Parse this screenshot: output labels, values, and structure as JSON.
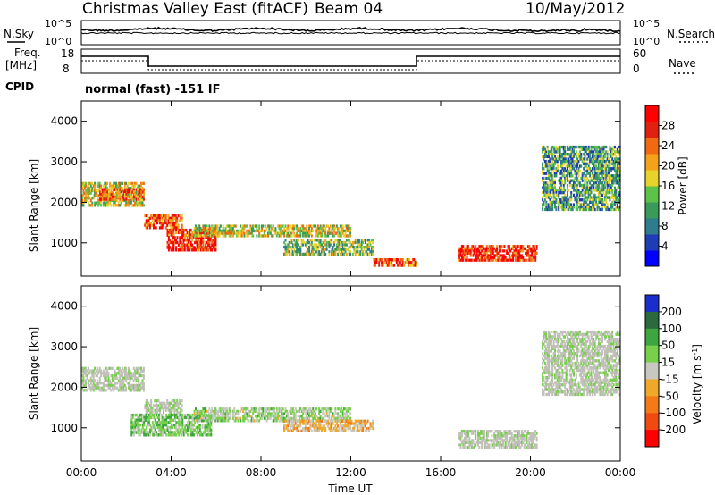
{
  "header": {
    "title": "Christmas Valley East (fitACF)",
    "beam": "Beam 04",
    "date": "10/May/2012"
  },
  "panels": {
    "nsky_label": "N.Sky",
    "nsearch_label": "N.Search",
    "freq_label_1": "Freq.",
    "freq_label_2": "[MHz]",
    "nave_label": "Nave",
    "cpid_label": "CPID",
    "cpid_text": "normal (fast) -151 IF",
    "noise_ticks": [
      "10^5",
      "10^0"
    ],
    "freq_ticks": [
      "18",
      "8"
    ],
    "nave_ticks": [
      "60",
      "0"
    ]
  },
  "colors": {
    "power_scale": [
      "#0000ff",
      "#1e3cb4",
      "#2f7c8c",
      "#3a9a5a",
      "#5cc24a",
      "#e8d32a",
      "#f4a21a",
      "#f06a14",
      "#e02010",
      "#ff0000"
    ],
    "velocity_scale": [
      "#1a2ecc",
      "#2a6a3c",
      "#3ea63e",
      "#76d04a",
      "#c8c8c0",
      "#f0a82a",
      "#f47a18",
      "#f04a12",
      "#ff0000"
    ],
    "ground_scatter": "#c0c0b8"
  },
  "chart_data": [
    {
      "type": "heatmap",
      "name": "power",
      "ylabel": "Slant Range [km]",
      "xlabel": "",
      "yticks": [
        "1000",
        "2000",
        "3000",
        "4000"
      ],
      "ylim": [
        180,
        4500
      ],
      "xlim": [
        0,
        24
      ],
      "colorbar": {
        "label": "Power [dB]",
        "ticks": [
          "4",
          "8",
          "12",
          "16",
          "20",
          "24",
          "28"
        ],
        "range": [
          0,
          32
        ]
      },
      "regions": [
        {
          "t0": 0.0,
          "t1": 2.8,
          "r0": 1900,
          "r1": 2500,
          "level": 0.55
        },
        {
          "t0": 0.8,
          "t1": 2.8,
          "r0": 2050,
          "r1": 2350,
          "level": 0.75
        },
        {
          "t0": 2.8,
          "t1": 4.5,
          "r0": 1350,
          "r1": 1700,
          "level": 0.8
        },
        {
          "t0": 3.8,
          "t1": 6.0,
          "r0": 800,
          "r1": 1350,
          "level": 0.88
        },
        {
          "t0": 5.0,
          "t1": 12.0,
          "r0": 1150,
          "r1": 1450,
          "level": 0.55
        },
        {
          "t0": 9.0,
          "t1": 13.0,
          "r0": 700,
          "r1": 1100,
          "level": 0.45
        },
        {
          "t0": 13.0,
          "t1": 15.0,
          "r0": 420,
          "r1": 620,
          "level": 0.8
        },
        {
          "t0": 16.8,
          "t1": 20.3,
          "r0": 550,
          "r1": 950,
          "level": 0.9
        },
        {
          "t0": 20.5,
          "t1": 24.0,
          "r0": 1800,
          "r1": 3400,
          "level": 0.35
        }
      ]
    },
    {
      "type": "heatmap",
      "name": "velocity",
      "ylabel": "Slant Range [km]",
      "xlabel": "Time UT",
      "xticks": [
        "00:00",
        "04:00",
        "08:00",
        "12:00",
        "16:00",
        "20:00",
        "00:00"
      ],
      "yticks": [
        "1000",
        "2000",
        "3000",
        "4000"
      ],
      "ylim": [
        180,
        4500
      ],
      "xlim": [
        0,
        24
      ],
      "colorbar": {
        "label": "Velocity [m s^-1]",
        "ticks": [
          "200",
          "100",
          "50",
          "15",
          "-15",
          "-50",
          "-100",
          "-200"
        ],
        "range": [
          -250,
          250
        ]
      },
      "regions": [
        {
          "t0": 0.0,
          "t1": 2.8,
          "r0": 1900,
          "r1": 2500,
          "level": -10
        },
        {
          "t0": 2.8,
          "t1": 4.5,
          "r0": 1350,
          "r1": 1700,
          "level": 0
        },
        {
          "t0": 2.2,
          "t1": 5.8,
          "r0": 800,
          "r1": 1350,
          "level": 60
        },
        {
          "t0": 5.0,
          "t1": 12.0,
          "r0": 1150,
          "r1": 1500,
          "level": 30
        },
        {
          "t0": 9.0,
          "t1": 13.0,
          "r0": 900,
          "r1": 1200,
          "level": -40
        },
        {
          "t0": 16.8,
          "t1": 20.3,
          "r0": 500,
          "r1": 950,
          "level": 0
        },
        {
          "t0": 20.5,
          "t1": 24.0,
          "r0": 1800,
          "r1": 3400,
          "level": 5
        }
      ]
    }
  ]
}
